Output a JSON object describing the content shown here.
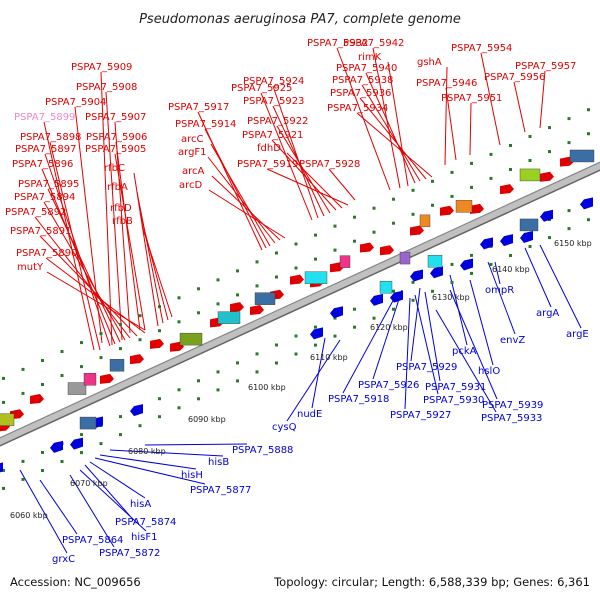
{
  "title": "Pseudomonas aeruginosa PA7, complete genome",
  "footer": {
    "accession": "Accession: NC_009656",
    "topology": "Topology: circular; Length: 6,588,339 bp; Genes: 6,361"
  },
  "colors": {
    "forward": "#e00000",
    "reverse": "#0000dd",
    "highlight": "#ee88cc",
    "backbone": "#aaaaaa",
    "tick": "#2a7a2a"
  },
  "kbp_ticks": [
    "6060 kbp",
    "6070 kbp",
    "6080 kbp",
    "6090 kbp",
    "6100 kbp",
    "6110 kbp",
    "6120 kbp",
    "6130 kbp",
    "6140 kbp",
    "6150 kbp"
  ],
  "forward_labels": [
    "PSPA7_5909",
    "PSPA7_5908",
    "PSPA7_5899",
    "PSPA7_5904",
    "PSPA7_5907",
    "PSPA7_5898",
    "PSPA7_5906",
    "PSPA7_5897",
    "PSPA7_5905",
    "PSPA7_5896",
    "rfbC",
    "rfbA",
    "PSPA7_5895",
    "PSPA7_5894",
    "rfbD",
    "PSPA7_5892",
    "rfbB",
    "PSPA7_5891",
    "PSPA7_5890",
    "mutY",
    "PSPA7_5917",
    "PSPA7_5914",
    "arcC",
    "argF1",
    "arcA",
    "arcD",
    "PSPA7_5925",
    "PSPA7_5924",
    "PSPA7_5923",
    "PSPA7_5922",
    "PSPA7_5921",
    "fdhD",
    "PSPA7_5919",
    "PSPA7_5928",
    "PSPA7_5932",
    "PSPA7_5942",
    "rimK",
    "PSPA7_5940",
    "PSPA7_5938",
    "PSPA7_5936",
    "PSPA7_5934",
    "gshA",
    "PSPA7_5946",
    "PSPA7_5951",
    "PSPA7_5954",
    "PSPA7_5957",
    "PSPA7_5956"
  ],
  "reverse_labels": [
    "argA",
    "argE",
    "ompR",
    "envZ",
    "pckA",
    "hslO",
    "PSPA7_5939",
    "PSPA7_5929",
    "PSPA7_5931",
    "PSPA7_5926",
    "PSPA7_5930",
    "PSPA7_5918",
    "PSPA7_5927",
    "PSPA7_5933",
    "cysQ",
    "nudE",
    "PSPA7_5888",
    "hisB",
    "hisH",
    "PSPA7_5877",
    "hisA",
    "PSPA7_5874",
    "hisF1",
    "PSPA7_5864",
    "PSPA7_5872",
    "grxC"
  ]
}
